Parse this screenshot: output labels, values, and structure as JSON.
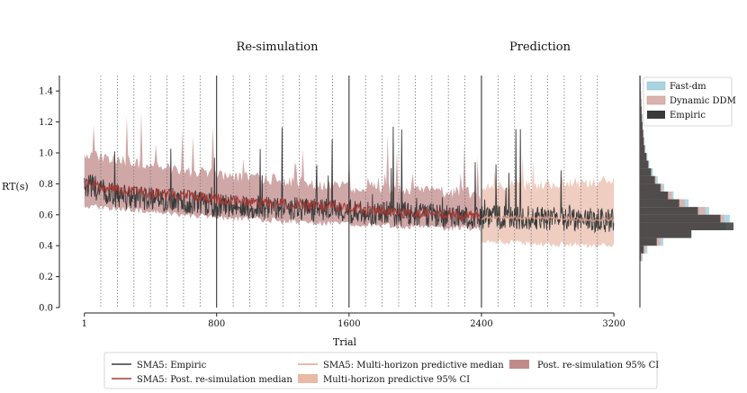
{
  "chart_data": {
    "type": "line",
    "section_titles": [
      "Re-simulation",
      "Prediction"
    ],
    "xlabel": "Trial",
    "ylabel": "RT(s)",
    "xticks": [
      1,
      800,
      1600,
      2400,
      3200
    ],
    "yticks": [
      0.0,
      0.2,
      0.4,
      0.6,
      0.8,
      1.0,
      1.2,
      1.4
    ],
    "xlim": [
      -150,
      3330
    ],
    "ylim": [
      0.0,
      1.5
    ],
    "solid_vlines": [
      800,
      1600,
      2400
    ],
    "dotted_vlines": [
      100,
      200,
      300,
      400,
      500,
      600,
      700,
      900,
      1000,
      1100,
      1200,
      1300,
      1400,
      1500,
      1700,
      1800,
      1900,
      2000,
      2100,
      2200,
      2300,
      2500,
      2600,
      2700,
      2800,
      2900,
      3000,
      3100
    ],
    "prediction_start": 2400,
    "series": [
      {
        "name": "SMA5: Empiric",
        "color": "#3a3a3a",
        "x": [
          1,
          200,
          400,
          600,
          800,
          1000,
          1200,
          1400,
          1600,
          1800,
          2000,
          2200,
          2400,
          2600,
          2800,
          3000,
          3200
        ],
        "values": [
          0.8,
          0.72,
          0.7,
          0.69,
          0.66,
          0.65,
          0.64,
          0.63,
          0.62,
          0.61,
          0.6,
          0.59,
          0.58,
          0.58,
          0.58,
          0.57,
          0.56
        ]
      },
      {
        "name": "SMA5: Post. re-simulation median",
        "color": "#a33a35",
        "x": [
          1,
          200,
          400,
          600,
          800,
          1000,
          1200,
          1400,
          1600,
          1800,
          2000,
          2200,
          2400
        ],
        "values": [
          0.8,
          0.76,
          0.74,
          0.73,
          0.7,
          0.68,
          0.67,
          0.66,
          0.64,
          0.62,
          0.61,
          0.6,
          0.59
        ]
      },
      {
        "name": "SMA5: Multi-horizon predictive median",
        "color": "#e0a48e",
        "x": [
          2400,
          2600,
          2800,
          3000,
          3200
        ],
        "values": [
          0.58,
          0.58,
          0.58,
          0.57,
          0.57
        ]
      }
    ],
    "bands": [
      {
        "name": "Post. re-simulation 95% CI",
        "color": "#c08a8a",
        "x": [
          1,
          400,
          800,
          1200,
          1600,
          2000,
          2400
        ],
        "lower": [
          0.66,
          0.62,
          0.58,
          0.56,
          0.54,
          0.52,
          0.51
        ],
        "upper": [
          1.0,
          0.92,
          0.86,
          0.82,
          0.78,
          0.76,
          0.74
        ]
      },
      {
        "name": "Multi-horizon predictive 95% CI",
        "color": "#e8b9a6",
        "x": [
          2400,
          2800,
          3200
        ],
        "lower": [
          0.43,
          0.41,
          0.4
        ],
        "upper": [
          0.78,
          0.8,
          0.82
        ]
      }
    ],
    "marginal": {
      "legend": [
        "Fast-dm",
        "Dynamic DDM",
        "Empiric"
      ],
      "colors": [
        "#a9d3e0",
        "#d9b3ad",
        "#3a3a3a"
      ],
      "bins": [
        0.3,
        0.35,
        0.4,
        0.45,
        0.5,
        0.55,
        0.6,
        0.65,
        0.7,
        0.75,
        0.8,
        0.85,
        0.9,
        0.95,
        1.0,
        1.05,
        1.1,
        1.15,
        1.2,
        1.25,
        1.3,
        1.35,
        1.4,
        1.45
      ],
      "fast_dm": [
        0.03,
        0.08,
        0.25,
        0.55,
        0.92,
        0.96,
        0.74,
        0.52,
        0.36,
        0.26,
        0.19,
        0.14,
        0.1,
        0.08,
        0.06,
        0.05,
        0.04,
        0.03,
        0.025,
        0.02,
        0.015,
        0.012,
        0.01,
        0.008
      ],
      "dynamic_ddm": [
        0.02,
        0.06,
        0.22,
        0.52,
        0.86,
        0.9,
        0.7,
        0.48,
        0.34,
        0.24,
        0.17,
        0.12,
        0.09,
        0.07,
        0.055,
        0.045,
        0.035,
        0.028,
        0.022,
        0.018,
        0.014,
        0.011,
        0.009,
        0.007
      ],
      "empiric": [
        0.01,
        0.04,
        0.18,
        0.55,
        1.0,
        0.86,
        0.62,
        0.42,
        0.3,
        0.22,
        0.16,
        0.12,
        0.09,
        0.07,
        0.05,
        0.04,
        0.035,
        0.028,
        0.022,
        0.018,
        0.014,
        0.011,
        0.009,
        0.007
      ]
    }
  }
}
